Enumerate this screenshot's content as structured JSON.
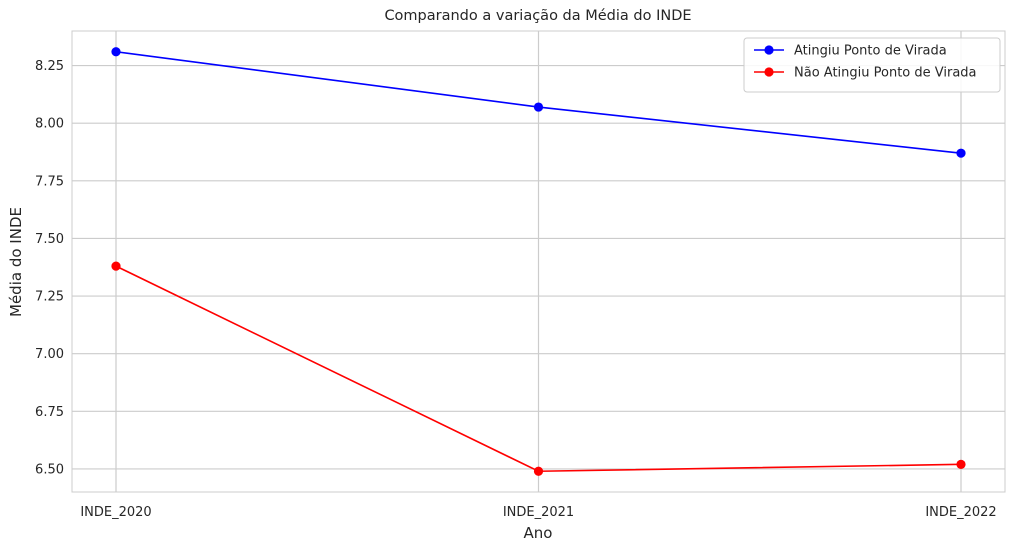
{
  "chart_data": {
    "type": "line",
    "title": "Comparando a variação da Média do INDE",
    "xlabel": "Ano",
    "ylabel": "Média do INDE",
    "categories": [
      "INDE_2020",
      "INDE_2021",
      "INDE_2022"
    ],
    "ylim": [
      6.4,
      8.4
    ],
    "yticks": [
      6.5,
      6.75,
      7.0,
      7.25,
      7.5,
      7.75,
      8.0,
      8.25
    ],
    "ytick_labels": [
      "6.50",
      "6.75",
      "7.00",
      "7.25",
      "7.50",
      "7.75",
      "8.00",
      "8.25"
    ],
    "grid": true,
    "legend_position": "top-right",
    "series": [
      {
        "name": "Atingiu Ponto de Virada",
        "values": [
          8.31,
          8.07,
          7.87
        ],
        "color": "#0000ff"
      },
      {
        "name": "Não Atingiu Ponto de Virada",
        "values": [
          7.38,
          6.49,
          6.52
        ],
        "color": "#ff0000"
      }
    ]
  }
}
